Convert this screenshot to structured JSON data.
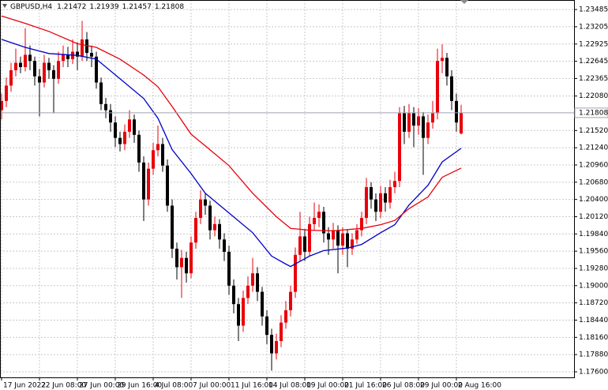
{
  "chart_data": {
    "type": "candlestick",
    "title": "GBPUSD,H4",
    "up_color": "#e8000b",
    "down_color": "#000000",
    "open": [
      1.2185,
      1.22,
      1.2225,
      1.225,
      1.2262,
      1.2255,
      1.2275,
      1.2265,
      1.224,
      1.223,
      1.2262,
      1.225,
      1.2236,
      1.2265,
      1.2275,
      1.2268,
      1.228,
      1.2272,
      1.23,
      1.2278,
      1.2272,
      1.223,
      1.2195,
      1.2185,
      1.2165,
      1.214,
      1.213,
      1.215,
      1.217,
      1.2145,
      1.21,
      1.204,
      1.209,
      1.212,
      1.213,
      1.2095,
      1.203,
      1.196,
      1.193,
      1.1945,
      1.192,
      1.197,
      1.201,
      1.204,
      1.203,
      1.199,
      1.2,
      1.1975,
      1.1955,
      1.19,
      1.187,
      1.1835,
      1.188,
      1.19,
      1.192,
      1.189,
      1.185,
      1.182,
      1.179,
      1.181,
      1.184,
      1.186,
      1.189,
      1.195,
      1.198,
      1.1955,
      1.2,
      1.201,
      1.202,
      1.1985,
      1.1975,
      1.199,
      1.1965,
      1.1985,
      1.196,
      1.1975,
      1.199,
      1.201,
      1.206,
      1.204,
      1.202,
      1.205,
      1.2035,
      1.206,
      1.207,
      1.218,
      1.215,
      1.218,
      1.216,
      1.2175,
      1.214,
      1.2165,
      1.218,
      1.2265,
      1.227,
      1.224,
      1.22,
      1.21472
    ],
    "high": [
      1.2212,
      1.2238,
      1.2262,
      1.2285,
      1.2272,
      1.2318,
      1.229,
      1.2272,
      1.2252,
      1.2275,
      1.227,
      1.2258,
      1.228,
      1.229,
      1.2288,
      1.23,
      1.2295,
      1.233,
      1.2312,
      1.229,
      1.228,
      1.2238,
      1.2205,
      1.2195,
      1.2175,
      1.215,
      1.2162,
      1.2185,
      1.2178,
      1.2152,
      1.211,
      1.21,
      1.2132,
      1.216,
      1.214,
      1.2105,
      1.204,
      1.197,
      1.1958,
      1.1955,
      1.198,
      1.202,
      1.2055,
      1.205,
      1.2038,
      1.2012,
      1.2008,
      1.1985,
      1.1965,
      1.191,
      1.188,
      1.1892,
      1.1915,
      1.1945,
      1.193,
      1.1898,
      1.186,
      1.183,
      1.1822,
      1.1852,
      1.1875,
      1.19,
      1.1962,
      1.202,
      1.1992,
      1.2012,
      1.2035,
      1.2032,
      1.2028,
      1.1995,
      1.2002,
      1.1998,
      1.1995,
      1.1992,
      1.1985,
      1.2,
      1.202,
      1.2075,
      1.2068,
      1.205,
      1.2062,
      1.206,
      1.2072,
      1.2085,
      1.219,
      1.2192,
      1.2195,
      1.219,
      1.2188,
      1.2182,
      1.2178,
      1.22,
      1.2285,
      1.2292,
      1.2278,
      1.225,
      1.2212,
      1.21939
    ],
    "low": [
      1.217,
      1.219,
      1.2215,
      1.224,
      1.2245,
      1.2248,
      1.225,
      1.2225,
      1.2175,
      1.2222,
      1.2236,
      1.218,
      1.2228,
      1.2255,
      1.2255,
      1.226,
      1.225,
      1.2265,
      1.2265,
      1.2255,
      1.222,
      1.2185,
      1.2172,
      1.215,
      1.2125,
      1.2118,
      1.212,
      1.214,
      1.2132,
      1.2085,
      1.2005,
      1.203,
      1.208,
      1.211,
      1.2085,
      1.202,
      1.1945,
      1.191,
      1.188,
      1.1905,
      1.1912,
      1.196,
      1.2,
      1.2015,
      1.1975,
      1.198,
      1.196,
      1.194,
      1.1885,
      1.1855,
      1.181,
      1.1825,
      1.187,
      1.189,
      1.1875,
      1.1835,
      1.1805,
      1.1762,
      1.178,
      1.18,
      1.183,
      1.185,
      1.188,
      1.194,
      1.194,
      1.1948,
      1.199,
      1.1995,
      1.197,
      1.195,
      1.196,
      1.192,
      1.195,
      1.193,
      1.195,
      1.1968,
      1.198,
      1.2,
      1.2025,
      1.2005,
      1.201,
      1.202,
      1.2025,
      1.205,
      1.206,
      1.213,
      1.214,
      1.2125,
      1.2145,
      1.208,
      1.213,
      1.2155,
      1.217,
      1.2245,
      1.2225,
      1.2185,
      1.215,
      1.21457
    ],
    "close": [
      1.22,
      1.2225,
      1.225,
      1.2262,
      1.2255,
      1.2275,
      1.2265,
      1.224,
      1.223,
      1.2262,
      1.225,
      1.2236,
      1.2265,
      1.2275,
      1.2268,
      1.228,
      1.2272,
      1.23,
      1.2278,
      1.2272,
      1.223,
      1.2195,
      1.2185,
      1.2165,
      1.214,
      1.213,
      1.215,
      1.217,
      1.2145,
      1.21,
      1.204,
      1.209,
      1.212,
      1.213,
      1.2095,
      1.203,
      1.196,
      1.193,
      1.1945,
      1.192,
      1.197,
      1.201,
      1.204,
      1.203,
      1.199,
      1.2,
      1.1975,
      1.1955,
      1.19,
      1.187,
      1.1835,
      1.188,
      1.19,
      1.192,
      1.189,
      1.185,
      1.182,
      1.179,
      1.181,
      1.184,
      1.186,
      1.189,
      1.195,
      1.198,
      1.1955,
      1.2,
      1.201,
      1.202,
      1.1985,
      1.1975,
      1.199,
      1.1965,
      1.1985,
      1.196,
      1.1975,
      1.199,
      1.201,
      1.206,
      1.204,
      1.202,
      1.205,
      1.2035,
      1.206,
      1.207,
      1.218,
      1.215,
      1.218,
      1.216,
      1.2175,
      1.214,
      1.2165,
      1.218,
      1.2265,
      1.227,
      1.224,
      1.22,
      1.2165,
      1.21808
    ],
    "series": [
      {
        "color": "#0000c8",
        "x": [
          0,
          5,
          10,
          16,
          20,
          25,
          30,
          33,
          36,
          40,
          43,
          48,
          53,
          57,
          60,
          61,
          65,
          68,
          73,
          76,
          80,
          83,
          86,
          90,
          93,
          97
        ],
        "values": [
          1.23,
          1.2287,
          1.2277,
          1.2274,
          1.2268,
          1.2236,
          1.2204,
          1.2172,
          1.2121,
          1.2082,
          1.205,
          1.2018,
          1.1986,
          1.1948,
          1.1935,
          1.1931,
          1.1948,
          1.1957,
          1.1961,
          1.1967,
          1.1986,
          1.1999,
          1.2031,
          1.2063,
          1.2101,
          1.2123
        ]
      },
      {
        "color": "#e8000b",
        "x": [
          0,
          5,
          10,
          16,
          20,
          25,
          30,
          33,
          36,
          40,
          43,
          48,
          53,
          58,
          61,
          65,
          70,
          76,
          80,
          83,
          86,
          90,
          93,
          97
        ],
        "values": [
          1.2338,
          1.2326,
          1.2313,
          1.2293,
          1.2287,
          1.2268,
          1.2242,
          1.2223,
          1.2191,
          1.2146,
          1.2127,
          1.2095,
          1.205,
          1.2012,
          1.1993,
          1.199,
          1.1989,
          1.1993,
          1.1999,
          1.2006,
          1.2025,
          1.2044,
          1.2076,
          1.2091
        ]
      }
    ],
    "xlim": [
      -0.33,
      120.83
    ],
    "xticks": [
      {
        "value": 0,
        "label": "17 Jun 2022"
      },
      {
        "value": 8,
        "label": "22 Jun 08:00"
      },
      {
        "value": 16,
        "label": "27 Jun 00:00"
      },
      {
        "value": 24,
        "label": "29 Jun 16:00"
      },
      {
        "value": 32,
        "label": "4 Jul 08:00"
      },
      {
        "value": 40,
        "label": "7 Jul 00:00"
      },
      {
        "value": 48,
        "label": "11 Jul 16:00"
      },
      {
        "value": 56,
        "label": "14 Jul 08:00"
      },
      {
        "value": 64,
        "label": "19 Jul 00:00"
      },
      {
        "value": 72,
        "label": "21 Jul 16:00"
      },
      {
        "value": 80,
        "label": "26 Jul 08:00"
      },
      {
        "value": 88,
        "label": "29 Jul 00:00"
      },
      {
        "value": 96,
        "label": "2 Aug 16:00"
      }
    ],
    "ylim": [
      1.1751,
      1.2364
    ],
    "yticks": [
      {
        "value": 1.23485,
        "label": "1.23485"
      },
      {
        "value": 1.23205,
        "label": "1.23205"
      },
      {
        "value": 1.22925,
        "label": "1.22925"
      },
      {
        "value": 1.22645,
        "label": "1.22645"
      },
      {
        "value": 1.22365,
        "label": "1.22365"
      },
      {
        "value": 1.2208,
        "label": "1.22080"
      },
      {
        "value": 1.2152,
        "label": "1.21520"
      },
      {
        "value": 1.2124,
        "label": "1.21240"
      },
      {
        "value": 1.2096,
        "label": "1.20960"
      },
      {
        "value": 1.2068,
        "label": "1.20680"
      },
      {
        "value": 1.204,
        "label": "1.20400"
      },
      {
        "value": 1.2012,
        "label": "1.20120"
      },
      {
        "value": 1.1984,
        "label": "1.19840"
      },
      {
        "value": 1.1956,
        "label": "1.19560"
      },
      {
        "value": 1.1928,
        "label": "1.19280"
      },
      {
        "value": 1.19,
        "label": "1.19000"
      },
      {
        "value": 1.1872,
        "label": "1.18720"
      },
      {
        "value": 1.1844,
        "label": "1.18440"
      },
      {
        "value": 1.1816,
        "label": "1.18160"
      },
      {
        "value": 1.1788,
        "label": "1.17880"
      },
      {
        "value": 1.176,
        "label": "1.17600"
      }
    ],
    "grid": true
  }
}
